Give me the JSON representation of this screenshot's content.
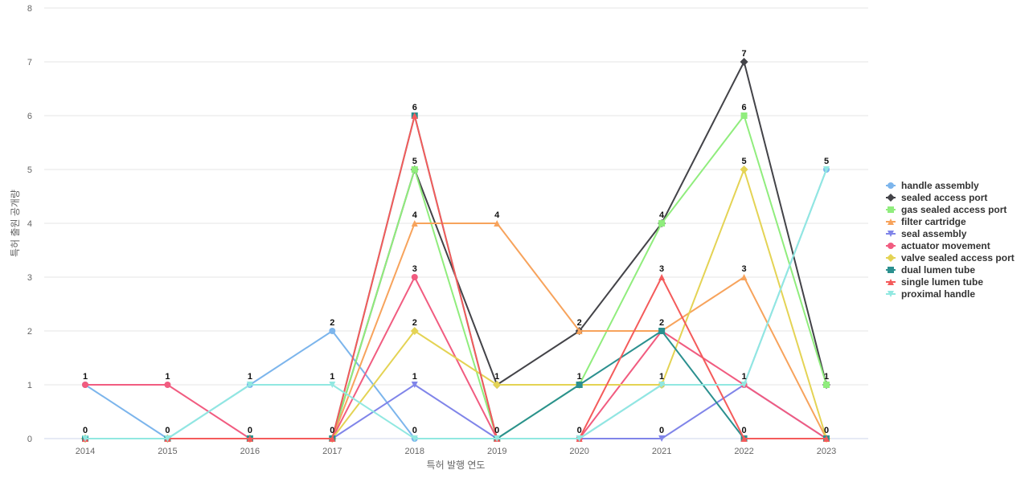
{
  "chart_data": {
    "type": "line",
    "title": "",
    "xlabel": "특허 발행 연도",
    "ylabel": "특허 출원 공개량",
    "ylim": [
      0,
      8
    ],
    "yticks": [
      0,
      1,
      2,
      3,
      4,
      5,
      6,
      7,
      8
    ],
    "grid": true,
    "legend_position": "right",
    "categories": [
      "2014",
      "2015",
      "2016",
      "2017",
      "2018",
      "2019",
      "2020",
      "2021",
      "2022",
      "2023"
    ],
    "series": [
      {
        "name": "handle assembly",
        "color": "#7cb5ec",
        "marker": "circle",
        "values": [
          1,
          0,
          1,
          2,
          0,
          0,
          0,
          1,
          1,
          5
        ]
      },
      {
        "name": "sealed access port",
        "color": "#434348",
        "marker": "diamond",
        "values": [
          0,
          0,
          0,
          0,
          5,
          1,
          2,
          4,
          7,
          1
        ]
      },
      {
        "name": "gas sealed access port",
        "color": "#90ed7d",
        "marker": "square",
        "values": [
          0,
          0,
          0,
          0,
          5,
          0,
          1,
          4,
          6,
          1
        ]
      },
      {
        "name": "filter cartridge",
        "color": "#f7a35c",
        "marker": "triangle",
        "values": [
          0,
          0,
          0,
          0,
          4,
          4,
          2,
          2,
          3,
          0
        ]
      },
      {
        "name": "seal assembly",
        "color": "#8085e9",
        "marker": "triangle-down",
        "values": [
          0,
          0,
          0,
          0,
          1,
          0,
          0,
          0,
          1,
          0
        ]
      },
      {
        "name": "actuator movement",
        "color": "#f15c80",
        "marker": "circle",
        "values": [
          1,
          1,
          0,
          0,
          3,
          0,
          0,
          2,
          1,
          0
        ]
      },
      {
        "name": "valve sealed access port",
        "color": "#e4d354",
        "marker": "diamond",
        "values": [
          0,
          0,
          0,
          0,
          2,
          1,
          1,
          1,
          5,
          0
        ]
      },
      {
        "name": "dual lumen tube",
        "color": "#2b908f",
        "marker": "square",
        "values": [
          0,
          0,
          0,
          0,
          6,
          0,
          1,
          2,
          0,
          0
        ]
      },
      {
        "name": "single lumen tube",
        "color": "#f45b5b",
        "marker": "triangle",
        "values": [
          0,
          0,
          0,
          0,
          6,
          0,
          0,
          3,
          0,
          0
        ]
      },
      {
        "name": "proximal handle",
        "color": "#91e8e1",
        "marker": "triangle-down",
        "values": [
          0,
          0,
          1,
          1,
          0,
          0,
          0,
          1,
          1,
          5
        ]
      }
    ],
    "data_labels": [
      {
        "x": "2014",
        "top": "1",
        "bottom": "0"
      },
      {
        "x": "2015",
        "top": "1",
        "bottom": "0"
      },
      {
        "x": "2016",
        "top": "1",
        "bottom": "0"
      },
      {
        "x": "2017",
        "top": "2",
        "mid": "1",
        "bottom": "0"
      },
      {
        "x": "2018",
        "labels": [
          "6",
          "5",
          "4",
          "3",
          "2",
          "1",
          "0"
        ]
      },
      {
        "x": "2019",
        "labels": [
          "4",
          "1",
          "0"
        ]
      },
      {
        "x": "2020",
        "labels": [
          "2",
          "1",
          "0"
        ]
      },
      {
        "x": "2021",
        "labels": [
          "4",
          "3",
          "2",
          "1",
          "0"
        ]
      },
      {
        "x": "2022",
        "labels": [
          "7",
          "6",
          "5",
          "3",
          "1",
          "0"
        ]
      },
      {
        "x": "2023",
        "labels": [
          "5",
          "1",
          "0"
        ]
      }
    ]
  }
}
